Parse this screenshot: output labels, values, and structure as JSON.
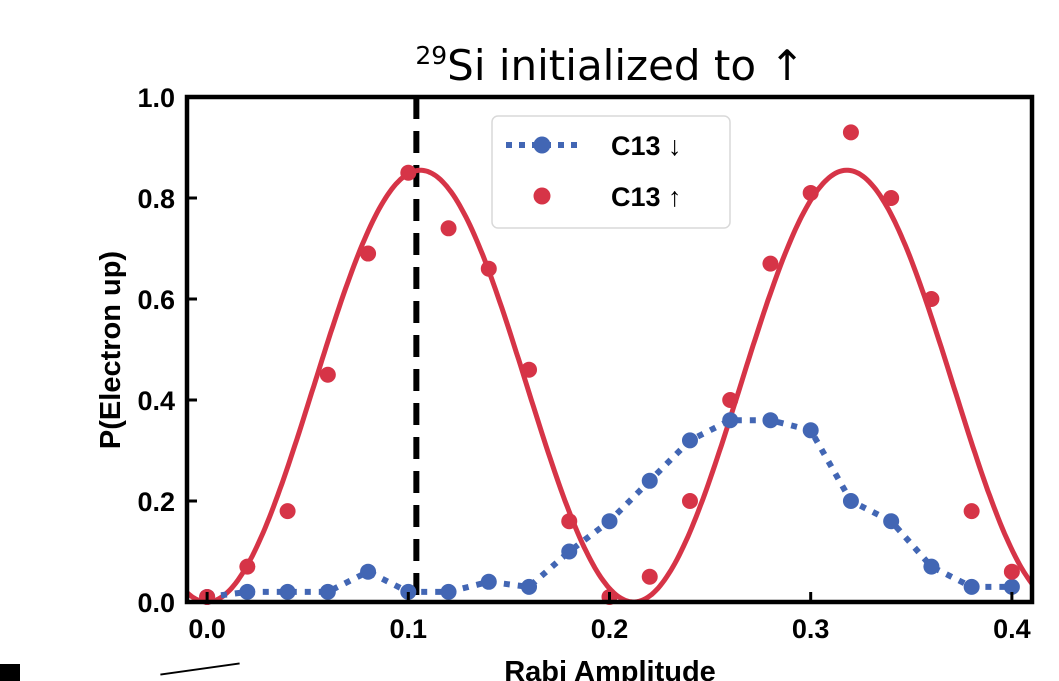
{
  "chart_data": {
    "type": "scatter",
    "title": {
      "superscript": "29",
      "text": "Si initialized to ↑"
    },
    "xlabel": "Rabi Amplitude",
    "ylabel": "P(Electron up)",
    "xlim": [
      -0.01,
      0.41
    ],
    "ylim": [
      0.0,
      1.0
    ],
    "xticks": [
      0.0,
      0.1,
      0.2,
      0.3,
      0.4
    ],
    "xtick_labels": [
      "0.0",
      "0.1",
      "0.2",
      "0.3",
      "0.4"
    ],
    "yticks": [
      0.0,
      0.2,
      0.4,
      0.6,
      0.8,
      1.0
    ],
    "ytick_labels": [
      "0.0",
      "0.2",
      "0.4",
      "0.6",
      "0.8",
      "1.0"
    ],
    "grid": false,
    "legend_position": "top-center",
    "vertical_line": {
      "x": 0.104,
      "style": "dashed",
      "color": "#000000"
    },
    "series": [
      {
        "name": "C13 ↓",
        "style": "dotted line with markers",
        "color": "#4266b4",
        "x": [
          0.0,
          0.02,
          0.04,
          0.06,
          0.08,
          0.1,
          0.12,
          0.14,
          0.16,
          0.18,
          0.2,
          0.22,
          0.24,
          0.26,
          0.28,
          0.3,
          0.32,
          0.34,
          0.36,
          0.38,
          0.4
        ],
        "y": [
          0.01,
          0.02,
          0.02,
          0.02,
          0.06,
          0.02,
          0.02,
          0.04,
          0.03,
          0.1,
          0.16,
          0.24,
          0.32,
          0.36,
          0.36,
          0.34,
          0.2,
          0.16,
          0.07,
          0.03,
          0.03
        ]
      },
      {
        "name": "C13 ↑",
        "style": "markers",
        "color": "#d63447",
        "x": [
          0.0,
          0.02,
          0.04,
          0.06,
          0.08,
          0.1,
          0.12,
          0.14,
          0.16,
          0.18,
          0.2,
          0.22,
          0.24,
          0.26,
          0.28,
          0.3,
          0.32,
          0.34,
          0.36,
          0.38,
          0.4
        ],
        "y": [
          0.01,
          0.07,
          0.18,
          0.45,
          0.69,
          0.85,
          0.74,
          0.66,
          0.46,
          0.16,
          0.01,
          0.05,
          0.2,
          0.4,
          0.67,
          0.81,
          0.93,
          0.8,
          0.6,
          0.18,
          0.06
        ]
      },
      {
        "style": "solid fit line",
        "color": "#d63447",
        "fit": {
          "amplitude": 0.855,
          "period": 0.212,
          "phase_shift": 0.0
        }
      }
    ]
  }
}
